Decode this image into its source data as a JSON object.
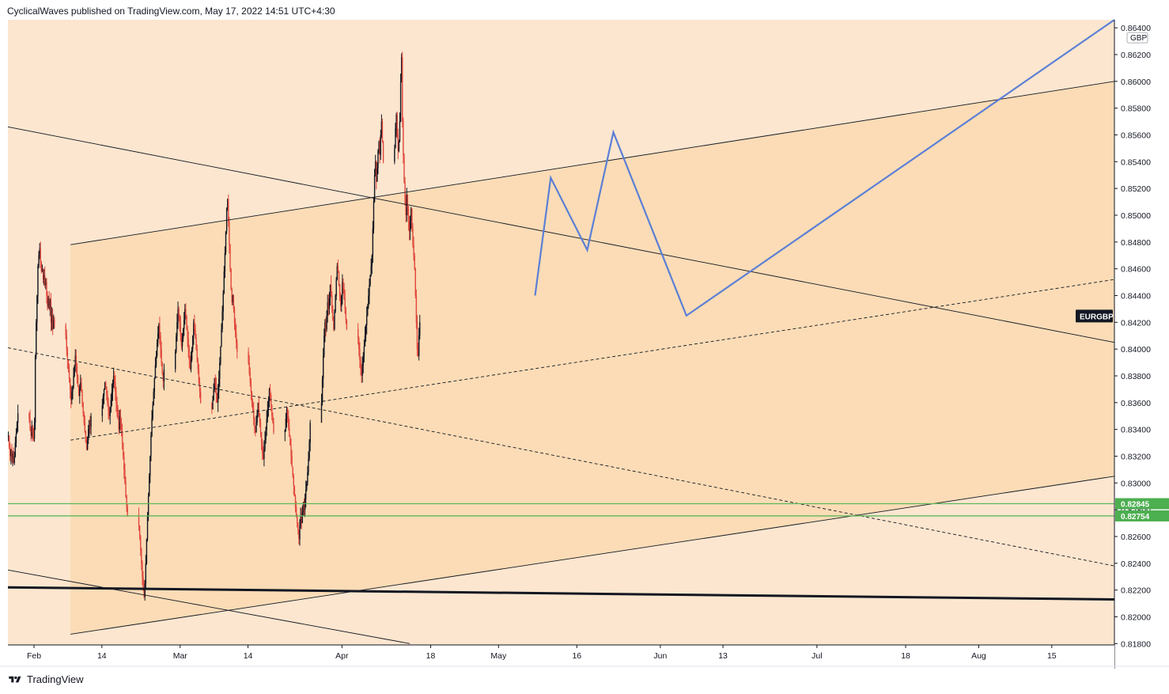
{
  "header": {
    "attribution": "CyclicalWaves published on TradingView.com, May 17, 2022 14:51 UTC+4:30"
  },
  "footer": {
    "brand": "TradingView",
    "logo_icon": "tradingview-logo-icon"
  },
  "colors": {
    "background_outer": "#fce6cf",
    "channel_fill": "#fbdcb6",
    "candle_up": "#131722",
    "candle_down": "#e0483e",
    "forecast_path": "#5b7fd6",
    "support_lines": "#5cb85c",
    "badge_dark": "#131722",
    "badge_green": "#4caf50"
  },
  "chart_data": {
    "type": "candlestick",
    "symbol_label": "EURGBP",
    "currency_label": "GBP",
    "x_ticks": [
      "Feb",
      "14",
      "Mar",
      "14",
      "Apr",
      "18",
      "May",
      "16",
      "Jun",
      "13",
      "Jul",
      "18",
      "Aug",
      "15"
    ],
    "y_ticks": [
      "0.86400",
      "0.86200",
      "0.86000",
      "0.85800",
      "0.85600",
      "0.85400",
      "0.85200",
      "0.85000",
      "0.84800",
      "0.84600",
      "0.84400",
      "0.84200",
      "0.84000",
      "0.83800",
      "0.83600",
      "0.83400",
      "0.83200",
      "0.83000",
      "0.82800",
      "0.82600",
      "0.82400",
      "0.82200",
      "0.82000",
      "0.81800"
    ],
    "y_range": [
      0.8179,
      0.8646
    ],
    "x_range": [
      "2022-01-27",
      "2022-08-27"
    ],
    "price_levels": [
      {
        "label": "0.82845",
        "value": 0.82845
      },
      {
        "label": "0.82754",
        "value": 0.82754
      }
    ],
    "current_label_value": 0.84247,
    "close_series": {
      "start_date": "2022-01-27",
      "interval": "4h",
      "values": [
        0.8335,
        0.8327,
        0.832,
        0.8325,
        0.8318,
        0.8322,
        0.8315,
        0.832,
        0.833,
        0.8337,
        0.8345,
        0.8352,
        0.8348,
        0.834,
        0.8335,
        0.8342,
        0.8338,
        0.8333,
        0.8345,
        0.8395,
        0.842,
        0.844,
        0.8462,
        0.847,
        0.8475,
        0.8465,
        0.8458,
        0.846,
        0.8452,
        0.8455,
        0.8448,
        0.845,
        0.844,
        0.8432,
        0.8438,
        0.843,
        0.8436,
        0.842,
        0.8425,
        0.8415,
        0.8422,
        0.8418,
        0.841,
        0.84,
        0.8392,
        0.8385,
        0.8378,
        0.837,
        0.8362,
        0.8368,
        0.8372,
        0.838,
        0.8388,
        0.8395,
        0.8388,
        0.838,
        0.8372,
        0.8365,
        0.837,
        0.8375,
        0.8368,
        0.836,
        0.8352,
        0.8345,
        0.8338,
        0.833,
        0.8325,
        0.8332,
        0.834,
        0.8347,
        0.8342,
        0.835,
        0.8358,
        0.8365,
        0.837,
        0.8375,
        0.8372,
        0.8366,
        0.836,
        0.8354,
        0.835,
        0.8356,
        0.8362,
        0.8368,
        0.8374,
        0.838,
        0.8375,
        0.8368,
        0.836,
        0.8355,
        0.8348,
        0.834,
        0.835,
        0.8345,
        0.8338,
        0.833,
        0.832,
        0.831,
        0.83,
        0.829,
        0.8282,
        0.8275,
        0.8268,
        0.826,
        0.825,
        0.824,
        0.823,
        0.8222,
        0.8215,
        0.8225,
        0.824,
        0.8258,
        0.8275,
        0.829,
        0.8305,
        0.832,
        0.8335,
        0.8348,
        0.8358,
        0.8368,
        0.8378,
        0.8388,
        0.8395,
        0.8405,
        0.8412,
        0.8418,
        0.841,
        0.84,
        0.839,
        0.8382,
        0.8376,
        0.8385,
        0.8398,
        0.841,
        0.842,
        0.843,
        0.8425,
        0.8418,
        0.841,
        0.8402,
        0.8408,
        0.8415,
        0.8422,
        0.843,
        0.8425,
        0.8415,
        0.8408,
        0.84,
        0.8392,
        0.8385,
        0.8392,
        0.84,
        0.841,
        0.842,
        0.8415,
        0.8408,
        0.84,
        0.8392,
        0.8385,
        0.8375,
        0.8368,
        0.836,
        0.8355,
        0.8362,
        0.837,
        0.8378,
        0.8372,
        0.8366,
        0.836,
        0.8368,
        0.8378,
        0.839,
        0.8402,
        0.8415,
        0.8428,
        0.8442,
        0.8458,
        0.8472,
        0.8488,
        0.8505,
        0.8512,
        0.8495,
        0.8478,
        0.846,
        0.8445,
        0.8435,
        0.844,
        0.843,
        0.842,
        0.8412,
        0.8405,
        0.8398,
        0.839,
        0.8382,
        0.8375,
        0.8368,
        0.836,
        0.8355,
        0.8348,
        0.8342,
        0.8338,
        0.8345,
        0.8352,
        0.836,
        0.8352,
        0.8345,
        0.8338,
        0.833,
        0.8322,
        0.8318,
        0.8325,
        0.8332,
        0.834,
        0.8348,
        0.8355,
        0.8362,
        0.837,
        0.8365,
        0.8358,
        0.835,
        0.8345,
        0.8338,
        0.834,
        0.8348,
        0.8355,
        0.835,
        0.8342,
        0.8335,
        0.8328,
        0.832,
        0.8312,
        0.8305,
        0.8298,
        0.829,
        0.8282,
        0.8275,
        0.827,
        0.8265,
        0.8258,
        0.8268,
        0.8275,
        0.827,
        0.8278,
        0.8285,
        0.828,
        0.8288,
        0.8295,
        0.83,
        0.8308,
        0.8318,
        0.833,
        0.8345,
        0.836,
        0.8378,
        0.8395,
        0.841,
        0.842,
        0.8415,
        0.8425,
        0.8435,
        0.843,
        0.8438,
        0.8448,
        0.844,
        0.843,
        0.8422,
        0.8415,
        0.8428,
        0.844,
        0.8452,
        0.8462,
        0.8458,
        0.8448,
        0.844,
        0.8432,
        0.844,
        0.845,
        0.8445,
        0.8438,
        0.843,
        0.8422,
        0.8415,
        0.8408,
        0.84,
        0.8392,
        0.8385,
        0.838,
        0.8388,
        0.8395,
        0.8402,
        0.841,
        0.8418,
        0.8425,
        0.8432,
        0.844,
        0.8448,
        0.8455,
        0.8462,
        0.847,
        0.849,
        0.851,
        0.853,
        0.854,
        0.8525,
        0.8535,
        0.8548,
        0.8555,
        0.8545,
        0.856,
        0.857,
        0.8555,
        0.854,
        0.855,
        0.8565,
        0.8575,
        0.856,
        0.8548,
        0.8555,
        0.857,
        0.86,
        0.8618,
        0.857,
        0.8545,
        0.8525,
        0.851,
        0.85,
        0.8515,
        0.8505,
        0.8495,
        0.8488,
        0.8495,
        0.8505,
        0.849,
        0.8478,
        0.847,
        0.846,
        0.844,
        0.842,
        0.84,
        0.8395,
        0.841,
        0.842
      ]
    },
    "channels": [
      {
        "name": "",
        "style": "solid",
        "points": [
          [
            "2022-02-08",
            0.8478
          ],
          [
            "2022-08-27",
            0.86
          ]
        ]
      },
      {
        "name": "",
        "style": "solid",
        "points": [
          [
            "2022-02-08",
            0.8187
          ],
          [
            "2022-08-27",
            0.8305
          ]
        ]
      },
      {
        "name": "",
        "style": "dashed",
        "points": [
          [
            "2022-02-08",
            0.8332
          ],
          [
            "2022-08-27",
            0.8452
          ]
        ]
      },
      {
        "name": "",
        "style": "solid",
        "points": [
          [
            "2022-01-27",
            0.8566
          ],
          [
            "2022-08-27",
            0.8405
          ]
        ]
      },
      {
        "name": "",
        "style": "dashed",
        "points": [
          [
            "2022-01-27",
            0.8401
          ],
          [
            "2022-08-27",
            0.8238
          ]
        ]
      },
      {
        "name": "",
        "style": "solid",
        "points": [
          [
            "2022-01-27",
            0.8235
          ],
          [
            "2022-04-14",
            0.818
          ]
        ]
      },
      {
        "name": "",
        "style": "bold",
        "points": [
          [
            "2022-01-27",
            0.8222
          ],
          [
            "2022-08-27",
            0.8213
          ]
        ]
      }
    ],
    "forecast_path": [
      [
        "2022-05-08",
        0.844
      ],
      [
        "2022-05-11",
        0.8528
      ],
      [
        "2022-05-18",
        0.8474
      ],
      [
        "2022-05-23",
        0.8562
      ],
      [
        "2022-06-06",
        0.8425
      ],
      [
        "2022-08-27",
        0.8646
      ]
    ]
  }
}
